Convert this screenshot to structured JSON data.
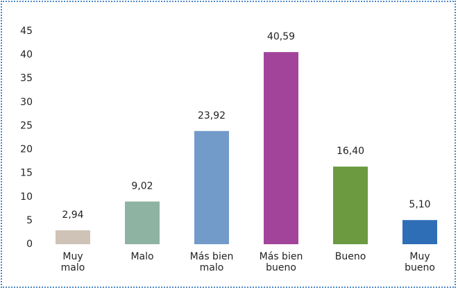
{
  "chart_data": {
    "type": "bar",
    "categories": [
      "Muy\nmalo",
      "Malo",
      "Más bien\nmalo",
      "Más bien\nbueno",
      "Bueno",
      "Muy\nbueno"
    ],
    "values": [
      2.94,
      9.02,
      23.92,
      40.59,
      16.4,
      5.1
    ],
    "value_labels": [
      "2,94",
      "9,02",
      "23,92",
      "40,59",
      "16,40",
      "5,10"
    ],
    "colors": [
      "#cfc3b7",
      "#8fb3a2",
      "#739bc9",
      "#a3449b",
      "#6b9a41",
      "#2e6eb6"
    ],
    "ylim": [
      0,
      45
    ],
    "yticks": [
      0,
      5,
      10,
      15,
      20,
      25,
      30,
      35,
      40,
      45
    ],
    "grid": false
  }
}
